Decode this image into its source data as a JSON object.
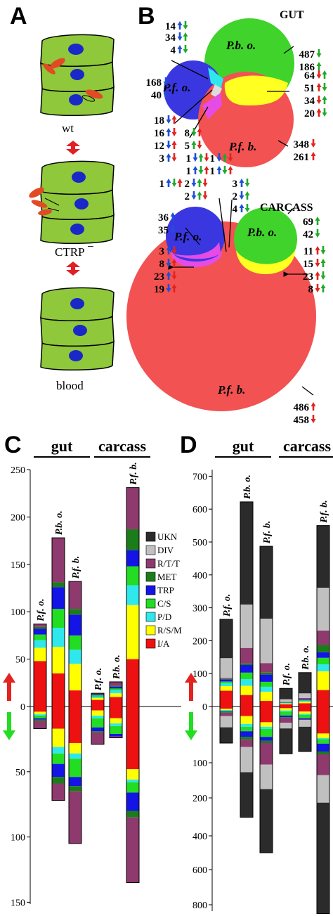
{
  "panel_A": {
    "letter": "A",
    "labels": [
      "wt",
      "CTRP",
      "−",
      "blood"
    ]
  },
  "panel_B": {
    "letter": "B",
    "gut": {
      "title": "GUT",
      "circles": [
        {
          "label": "P.f. o.",
          "color": "#3a37e0"
        },
        {
          "label": "P.b. o.",
          "color": "#3fd32b"
        },
        {
          "label": "P.f. b.",
          "color": "#f25252"
        }
      ],
      "counts": [
        {
          "value": "14",
          "arrows": [
            "blue",
            "green"
          ]
        },
        {
          "value": "34",
          "arrows": [
            "blue",
            "green"
          ]
        },
        {
          "value": "4",
          "arrows": [
            "blue",
            "green"
          ]
        },
        {
          "value": "487",
          "arrows": [
            "green"
          ]
        },
        {
          "value": "186",
          "arrows": [
            "green"
          ]
        },
        {
          "value": "168",
          "arrows": [
            "blue"
          ]
        },
        {
          "value": "40",
          "arrows": [
            "blue"
          ]
        },
        {
          "value": "64",
          "arrows": [
            "red",
            "green"
          ]
        },
        {
          "value": "51",
          "arrows": [
            "red",
            "green"
          ]
        },
        {
          "value": "34",
          "arrows": [
            "red",
            "green"
          ]
        },
        {
          "value": "20",
          "arrows": [
            "red",
            "green"
          ]
        },
        {
          "value": "18",
          "arrows": [
            "blue",
            "red"
          ]
        },
        {
          "value": "16",
          "arrows": [
            "blue",
            "red"
          ]
        },
        {
          "value": "12",
          "arrows": [
            "blue",
            "red"
          ]
        },
        {
          "value": "3",
          "arrows": [
            "blue",
            "red"
          ]
        },
        {
          "value": "8",
          "arrows": [
            "green",
            "red"
          ]
        },
        {
          "value": "5",
          "arrows": [
            "green",
            "red"
          ]
        },
        {
          "value": "1",
          "arrows": [
            "blue",
            "green",
            "red"
          ]
        },
        {
          "value": "1",
          "arrows": [
            "blue",
            "green",
            "red"
          ]
        },
        {
          "value": "1",
          "arrows": [
            "blue",
            "green",
            "red"
          ]
        },
        {
          "value": "1",
          "arrows": [
            "blue",
            "green",
            "red"
          ]
        },
        {
          "value": "348",
          "arrows": [
            "red"
          ]
        },
        {
          "value": "261",
          "arrows": [
            "red"
          ]
        }
      ]
    },
    "carcass": {
      "title": "CARCASS",
      "counts": [
        {
          "value": "1",
          "arrows": [
            "blue",
            "green",
            "red"
          ]
        },
        {
          "value": "2",
          "arrows": [
            "blue",
            "green",
            "red"
          ]
        },
        {
          "value": "3",
          "arrows": [
            "blue",
            "green"
          ]
        },
        {
          "value": "2",
          "arrows": [
            "blue",
            "green"
          ]
        },
        {
          "value": "4",
          "arrows": [
            "blue",
            "green"
          ]
        },
        {
          "value": "2",
          "arrows": [
            "blue",
            "green",
            "red"
          ]
        },
        {
          "value": "36",
          "arrows": [
            "blue"
          ]
        },
        {
          "value": "35",
          "arrows": [
            "blue"
          ]
        },
        {
          "value": "69",
          "arrows": [
            "green"
          ]
        },
        {
          "value": "42",
          "arrows": [
            "green"
          ]
        },
        {
          "value": "3",
          "arrows": [
            "blue",
            "red"
          ]
        },
        {
          "value": "8",
          "arrows": [
            "blue",
            "red"
          ]
        },
        {
          "value": "23",
          "arrows": [
            "blue",
            "red"
          ]
        },
        {
          "value": "19",
          "arrows": [
            "blue",
            "red"
          ]
        },
        {
          "value": "11",
          "arrows": [
            "red",
            "green"
          ]
        },
        {
          "value": "15",
          "arrows": [
            "red",
            "green"
          ]
        },
        {
          "value": "23",
          "arrows": [
            "red",
            "green"
          ]
        },
        {
          "value": "8",
          "arrows": [
            "red",
            "green"
          ]
        },
        {
          "value": "486",
          "arrows": [
            "red"
          ]
        },
        {
          "value": "458",
          "arrows": [
            "red"
          ]
        }
      ]
    }
  },
  "legend": [
    {
      "code": "UKN",
      "color": "#2b2b2b"
    },
    {
      "code": "DIV",
      "color": "#c0c0c0"
    },
    {
      "code": "R/T/T",
      "color": "#8e3a6e"
    },
    {
      "code": "MET",
      "color": "#1a7d1a"
    },
    {
      "code": "TRP",
      "color": "#1414e6"
    },
    {
      "code": "C/S",
      "color": "#22dd22"
    },
    {
      "code": "P/D",
      "color": "#2ee8ee"
    },
    {
      "code": "R/S/M",
      "color": "#ffff00"
    },
    {
      "code": "I/A",
      "color": "#ee1111"
    }
  ],
  "chart_data": [
    {
      "type": "bar",
      "panel": "C",
      "groups": [
        "gut",
        "carcass"
      ],
      "categories": [
        "P.f. o.",
        "P.b. o.",
        "P.f. b.",
        "P.f. o.",
        "P.b. o.",
        "P.f. b."
      ],
      "y_up_ticks": [
        0,
        50,
        100,
        150,
        200,
        250
      ],
      "y_down_ticks": [
        0,
        50,
        100,
        150
      ],
      "ylim_up": [
        0,
        250
      ],
      "ylim_down": [
        0,
        150
      ],
      "series_order": [
        "I/A",
        "R/S/M",
        "P/D",
        "C/S",
        "TRP",
        "MET",
        "R/T/T"
      ],
      "bars": [
        {
          "up": {
            "I/A": 48,
            "R/S/M": 14,
            "P/D": 8,
            "C/S": 6,
            "TRP": 6,
            "MET": 2,
            "R/T/T": 3
          },
          "down": {
            "I/A": 4,
            "R/S/M": 2,
            "P/D": 1,
            "C/S": 2,
            "TRP": 1,
            "MET": 1,
            "R/T/T": 6
          }
        },
        {
          "up": {
            "I/A": 35,
            "R/S/M": 28,
            "P/D": 20,
            "C/S": 20,
            "TRP": 23,
            "MET": 5,
            "R/T/T": 47
          },
          "down": {
            "I/A": 17,
            "R/S/M": 14,
            "P/D": 5,
            "C/S": 8,
            "TRP": 10,
            "MET": 5,
            "R/T/T": 13
          }
        },
        {
          "up": {
            "I/A": 17,
            "R/S/M": 28,
            "P/D": 15,
            "C/S": 15,
            "TRP": 22,
            "MET": 6,
            "R/T/T": 29
          },
          "down": {
            "I/A": 28,
            "R/S/M": 8,
            "P/D": 4,
            "C/S": 14,
            "TRP": 7,
            "MET": 4,
            "R/T/T": 40
          }
        },
        {
          "up": {
            "I/A": 7,
            "R/S/M": 2,
            "P/D": 1,
            "C/S": 2,
            "TRP": 1,
            "MET": 0,
            "R/T/T": 1
          },
          "down": {
            "I/A": 3,
            "R/S/M": 4,
            "P/D": 2,
            "C/S": 7,
            "TRP": 3,
            "MET": 1,
            "R/T/T": 9
          }
        },
        {
          "up": {
            "I/A": 10,
            "R/S/M": 4,
            "P/D": 3,
            "C/S": 2,
            "TRP": 2,
            "MET": 1,
            "R/T/T": 4
          },
          "down": {
            "I/A": 9,
            "R/S/M": 4,
            "P/D": 2,
            "C/S": 6,
            "TRP": 2,
            "MET": 0,
            "R/T/T": 1
          }
        },
        {
          "up": {
            "I/A": 50,
            "R/S/M": 57,
            "P/D": 21,
            "C/S": 20,
            "TRP": 17,
            "MET": 22,
            "R/T/T": 44
          },
          "down": {
            "I/A": 48,
            "R/S/M": 8,
            "P/D": 2,
            "C/S": 8,
            "TRP": 14,
            "MET": 5,
            "R/T/T": 50
          }
        }
      ]
    },
    {
      "type": "bar",
      "panel": "D",
      "groups": [
        "gut",
        "carcass"
      ],
      "categories": [
        "P.f. o.",
        "P.b. o.",
        "P.f. b.",
        "P.f. o.",
        "P.b. o.",
        "P.f. b."
      ],
      "y_up_ticks": [
        0,
        100,
        200,
        300,
        400,
        500,
        600,
        700
      ],
      "y_down_ticks": [
        0,
        100,
        200,
        400,
        600,
        800
      ],
      "ylim_up": [
        0,
        700
      ],
      "series_order": [
        "I/A",
        "R/S/M",
        "P/D",
        "C/S",
        "TRP",
        "MET",
        "R/T/T",
        "DIV",
        "UKN"
      ],
      "bars": [
        {
          "up": {
            "I/A": 48,
            "R/S/M": 14,
            "P/D": 8,
            "C/S": 6,
            "TRP": 6,
            "MET": 2,
            "R/T/T": 3,
            "DIV": 60,
            "UKN": 118
          },
          "down": {
            "I/A": 4,
            "R/S/M": 2,
            "P/D": 1,
            "C/S": 2,
            "TRP": 1,
            "MET": 1,
            "R/T/T": 6,
            "DIV": 20,
            "UKN": 28
          }
        },
        {
          "up": {
            "I/A": 35,
            "R/S/M": 28,
            "P/D": 20,
            "C/S": 20,
            "TRP": 23,
            "MET": 5,
            "R/T/T": 47,
            "DIV": 132,
            "UKN": 312
          },
          "down": {
            "I/A": 17,
            "R/S/M": 14,
            "P/D": 5,
            "C/S": 8,
            "TRP": 10,
            "MET": 5,
            "R/T/T": 13,
            "DIV": 55,
            "UKN": 175
          }
        },
        {
          "up": {
            "I/A": 17,
            "R/S/M": 28,
            "P/D": 15,
            "C/S": 15,
            "TRP": 22,
            "MET": 6,
            "R/T/T": 29,
            "DIV": 135,
            "UKN": 220
          },
          "down": {
            "I/A": 28,
            "R/S/M": 8,
            "P/D": 4,
            "C/S": 14,
            "TRP": 7,
            "MET": 4,
            "R/T/T": 40,
            "DIV": 70,
            "UKN": 325
          }
        },
        {
          "up": {
            "I/A": 7,
            "R/S/M": 2,
            "P/D": 1,
            "C/S": 2,
            "TRP": 1,
            "MET": 0,
            "R/T/T": 1,
            "DIV": 8,
            "UKN": 33
          },
          "down": {
            "I/A": 3,
            "R/S/M": 4,
            "P/D": 2,
            "C/S": 7,
            "TRP": 3,
            "MET": 1,
            "R/T/T": 9,
            "DIV": 10,
            "UKN": 45
          }
        },
        {
          "up": {
            "I/A": 10,
            "R/S/M": 4,
            "P/D": 3,
            "C/S": 2,
            "TRP": 2,
            "MET": 1,
            "R/T/T": 4,
            "DIV": 14,
            "UKN": 63
          },
          "down": {
            "I/A": 9,
            "R/S/M": 4,
            "P/D": 2,
            "C/S": 6,
            "TRP": 2,
            "MET": 0,
            "R/T/T": 1,
            "DIV": 12,
            "UKN": 44
          }
        },
        {
          "up": {
            "I/A": 50,
            "R/S/M": 57,
            "P/D": 21,
            "C/S": 20,
            "TRP": 17,
            "MET": 22,
            "R/T/T": 44,
            "DIV": 130,
            "UKN": 189
          },
          "down": {
            "I/A": 48,
            "R/S/M": 8,
            "P/D": 2,
            "C/S": 8,
            "TRP": 14,
            "MET": 5,
            "R/T/T": 50,
            "DIV": 90,
            "UKN": 625
          }
        }
      ]
    }
  ]
}
